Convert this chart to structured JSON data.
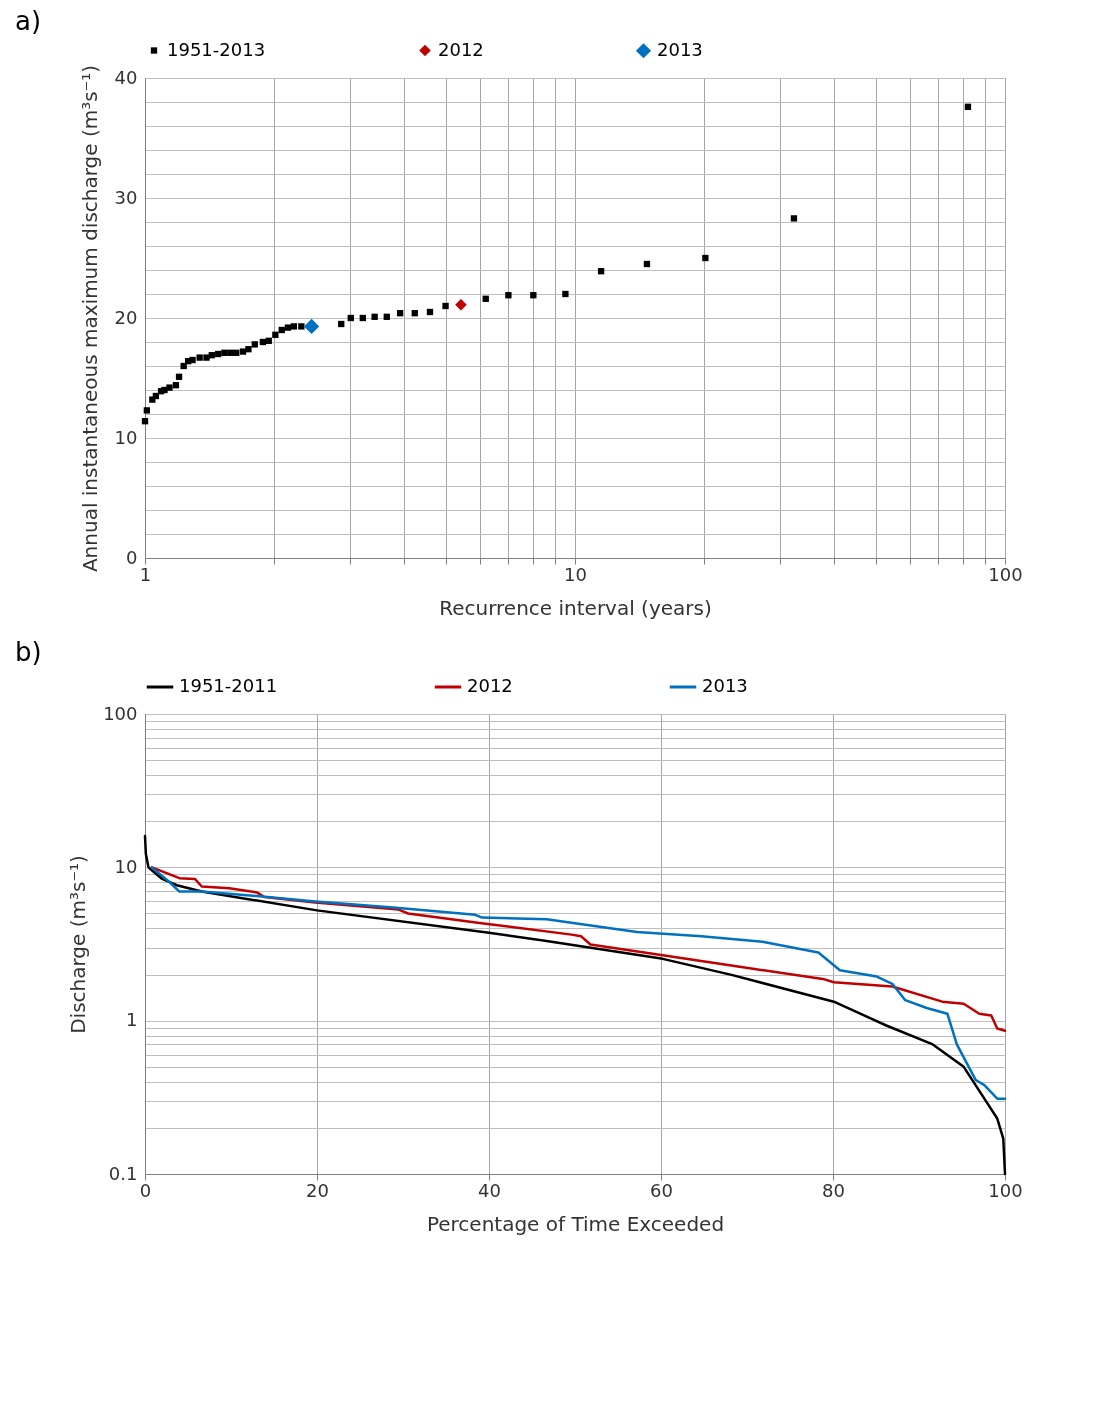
{
  "chart_data": [
    {
      "type": "scatter",
      "title": "a)",
      "xlabel": "Recurrence interval (years)",
      "ylabel": "Annual instantaneous maximum discharge (m³s⁻¹)",
      "log": "x",
      "grid": true,
      "legend": "top",
      "xlim": [
        1,
        100
      ],
      "xticks": [
        1,
        {
          "value": 2,
          "label": null
        },
        {
          "value": 3,
          "label": null
        },
        {
          "value": 4,
          "label": null
        },
        {
          "value": 5,
          "label": null
        },
        {
          "value": 6,
          "label": null
        },
        {
          "value": 7,
          "label": null
        },
        {
          "value": 8,
          "label": null
        },
        {
          "value": 9,
          "label": null
        },
        10,
        {
          "value": 20,
          "label": null
        },
        {
          "value": 30,
          "label": null
        },
        {
          "value": 40,
          "label": null
        },
        {
          "value": 50,
          "label": null
        },
        {
          "value": 60,
          "label": null
        },
        {
          "value": 70,
          "label": null
        },
        {
          "value": 80,
          "label": null
        },
        {
          "value": 90,
          "label": null
        },
        100
      ],
      "ylim": [
        0,
        40
      ],
      "yticks": [
        0,
        {
          "value": 2,
          "label": null
        },
        {
          "value": 4,
          "label": null
        },
        {
          "value": 6,
          "label": null
        },
        {
          "value": 8,
          "label": null
        },
        10,
        {
          "value": 12,
          "label": null
        },
        {
          "value": 14,
          "label": null
        },
        {
          "value": 16,
          "label": null
        },
        {
          "value": 18,
          "label": null
        },
        20,
        {
          "value": 22,
          "label": null
        },
        {
          "value": 24,
          "label": null
        },
        {
          "value": 26,
          "label": null
        },
        {
          "value": 28,
          "label": null
        },
        30,
        {
          "value": 32,
          "label": null
        },
        {
          "value": 34,
          "label": null
        },
        {
          "value": 36,
          "label": null
        },
        {
          "value": 38,
          "label": null
        },
        40
      ],
      "series": [
        {
          "name": "1951-2013",
          "color": "#000000",
          "marker": "square",
          "x": [
            1.0,
            1.01,
            1.04,
            1.06,
            1.09,
            1.11,
            1.14,
            1.18,
            1.2,
            1.23,
            1.26,
            1.29,
            1.34,
            1.39,
            1.43,
            1.48,
            1.53,
            1.58,
            1.63,
            1.69,
            1.74,
            1.8,
            1.88,
            1.94,
            2.01,
            2.08,
            2.15,
            2.22,
            2.31,
            2.86,
            3.01,
            3.21,
            3.42,
            3.65,
            3.92,
            4.24,
            4.6,
            5.0,
            6.2,
            7.0,
            8.0,
            9.5,
            11.5,
            14.7,
            20.1,
            32.3,
            82
          ],
          "values": [
            11.4,
            12.3,
            13.2,
            13.5,
            13.9,
            14.0,
            14.2,
            14.4,
            15.1,
            16.0,
            16.4,
            16.5,
            16.7,
            16.7,
            16.9,
            17.0,
            17.1,
            17.1,
            17.1,
            17.2,
            17.4,
            17.8,
            18.0,
            18.1,
            18.6,
            19.0,
            19.2,
            19.3,
            19.3,
            19.5,
            20.0,
            20.0,
            20.1,
            20.1,
            20.4,
            20.4,
            20.5,
            21.0,
            21.6,
            21.9,
            21.9,
            22.0,
            23.9,
            24.5,
            25.0,
            28.3,
            37.6
          ]
        },
        {
          "name": "2012",
          "color": "#c00000",
          "marker": "diamond",
          "x": [
            5.43
          ],
          "values": [
            21.1
          ]
        },
        {
          "name": "2013",
          "color": "#0070c0",
          "marker": "diamond",
          "x": [
            2.44
          ],
          "values": [
            19.3
          ]
        }
      ]
    },
    {
      "type": "line",
      "title": "b)",
      "xlabel": "Percentage of Time Exceeded",
      "ylabel": "Discharge (m³s⁻¹)",
      "log": "y",
      "grid": true,
      "legend": "top",
      "xlim": [
        0,
        100
      ],
      "xticks": [
        0,
        20,
        40,
        60,
        80,
        100
      ],
      "ylim": [
        0.1,
        100
      ],
      "yticks": [
        0.1,
        {
          "value": 0.2,
          "label": null
        },
        {
          "value": 0.3,
          "label": null
        },
        {
          "value": 0.4,
          "label": null
        },
        {
          "value": 0.5,
          "label": null
        },
        {
          "value": 0.6,
          "label": null
        },
        {
          "value": 0.7,
          "label": null
        },
        {
          "value": 0.8,
          "label": null
        },
        {
          "value": 0.9,
          "label": null
        },
        1,
        {
          "value": 2,
          "label": null
        },
        {
          "value": 3,
          "label": null
        },
        {
          "value": 4,
          "label": null
        },
        {
          "value": 5,
          "label": null
        },
        {
          "value": 6,
          "label": null
        },
        {
          "value": 7,
          "label": null
        },
        {
          "value": 8,
          "label": null
        },
        {
          "value": 9,
          "label": null
        },
        10,
        {
          "value": 20,
          "label": null
        },
        {
          "value": 30,
          "label": null
        },
        {
          "value": 40,
          "label": null
        },
        {
          "value": 50,
          "label": null
        },
        {
          "value": 60,
          "label": null
        },
        {
          "value": 70,
          "label": null
        },
        {
          "value": 80,
          "label": null
        },
        {
          "value": 90,
          "label": null
        },
        100
      ],
      "series": [
        {
          "name": "1951-2011",
          "color": "#000000",
          "x": [
            0,
            0.1,
            0.4,
            1.0,
            2.0,
            3.7,
            6.6,
            20,
            40,
            46.7,
            60.2,
            68.2,
            80.1,
            86.2,
            91.6,
            95.2,
            97.6,
            99.1,
            99.8,
            100
          ],
          "values": [
            16.0,
            12.2,
            10.0,
            9.35,
            8.4,
            7.64,
            6.95,
            5.24,
            3.74,
            3.31,
            2.53,
            1.99,
            1.33,
            0.93,
            0.7,
            0.5,
            0.31,
            0.23,
            0.17,
            0.1
          ]
        },
        {
          "name": "2012",
          "color": "#c00000",
          "x": [
            0.8,
            4.0,
            5.8,
            6.6,
            9.8,
            13.0,
            13.9,
            19.8,
            29.5,
            30.6,
            38.9,
            49.6,
            50.7,
            51.8,
            60.2,
            70.7,
            79,
            80.1,
            86.9,
            92.7,
            95.2,
            97.0,
            98.4,
            99.1,
            100
          ],
          "values": [
            10,
            8.5,
            8.4,
            7.5,
            7.3,
            6.86,
            6.4,
            5.9,
            5.3,
            5.0,
            4.34,
            3.64,
            3.55,
            3.14,
            2.67,
            2.18,
            1.86,
            1.78,
            1.67,
            1.33,
            1.29,
            1.11,
            1.08,
            0.89,
            0.86
          ]
        },
        {
          "name": "2013",
          "color": "#0070c0",
          "x": [
            0.8,
            2.9,
            4.0,
            6.6,
            13,
            19.5,
            29.2,
            38.4,
            39.2,
            46.7,
            57.2,
            64.7,
            71.8,
            78.3,
            80.8,
            85.1,
            86.9,
            88.4,
            90.9,
            93.3,
            94.4,
            96.6,
            97.6,
            99.1,
            100
          ],
          "values": [
            10,
            7.96,
            6.95,
            6.95,
            6.5,
            6.0,
            5.46,
            4.9,
            4.7,
            4.58,
            3.79,
            3.55,
            3.27,
            2.78,
            2.13,
            1.94,
            1.74,
            1.36,
            1.21,
            1.11,
            0.7,
            0.41,
            0.38,
            0.31,
            0.31
          ]
        }
      ]
    }
  ]
}
